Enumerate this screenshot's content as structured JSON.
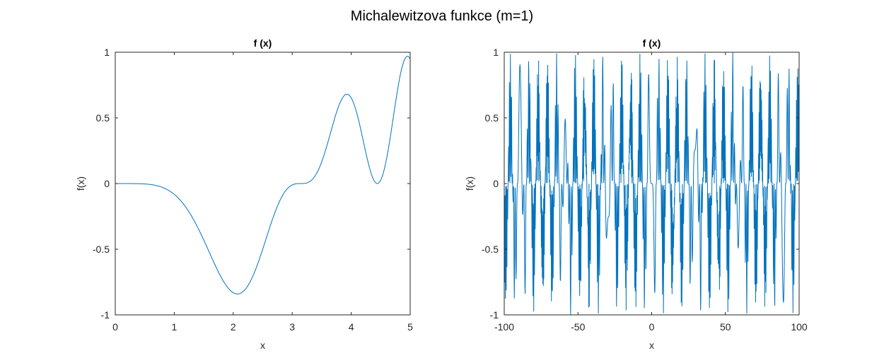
{
  "figure_title": "Michalewitzova funkce (m=1)",
  "chart_data": [
    {
      "type": "line",
      "title": "f (x)",
      "xlabel": "x",
      "ylabel": "f(x)",
      "xlim": [
        0,
        5
      ],
      "ylim": [
        -1,
        1
      ],
      "xticks": [
        0,
        1,
        2,
        3,
        4,
        5
      ],
      "xtick_labels": [
        "0",
        "1",
        "2",
        "3",
        "4",
        "5"
      ],
      "yticks": [
        -1,
        -0.5,
        0,
        0.5,
        1
      ],
      "ytick_labels": [
        "-1",
        "-0.5",
        "0",
        "0.5",
        "1"
      ],
      "grid": false,
      "color": "#0072BD",
      "series": [
        {
          "function": "-sin(x)*sin(x^2/pi)^2",
          "x_start": 0,
          "x_end": 5,
          "samples": 600
        }
      ]
    },
    {
      "type": "line",
      "title": "f (x)",
      "xlabel": "x",
      "ylabel": "f(x)",
      "xlim": [
        -100,
        100
      ],
      "ylim": [
        -1,
        1
      ],
      "xticks": [
        -100,
        -50,
        0,
        50,
        100
      ],
      "xtick_labels": [
        "-100",
        "-50",
        "0",
        "50",
        "100"
      ],
      "yticks": [
        -1,
        -0.5,
        0,
        0.5,
        1
      ],
      "ytick_labels": [
        "-1",
        "-0.5",
        "0",
        "0.5",
        "1"
      ],
      "grid": false,
      "color": "#0072BD",
      "series": [
        {
          "function": "-sin(x)*sin(x^2/pi)^2",
          "x_start": -100,
          "x_end": 100,
          "samples": 1200
        }
      ]
    }
  ]
}
